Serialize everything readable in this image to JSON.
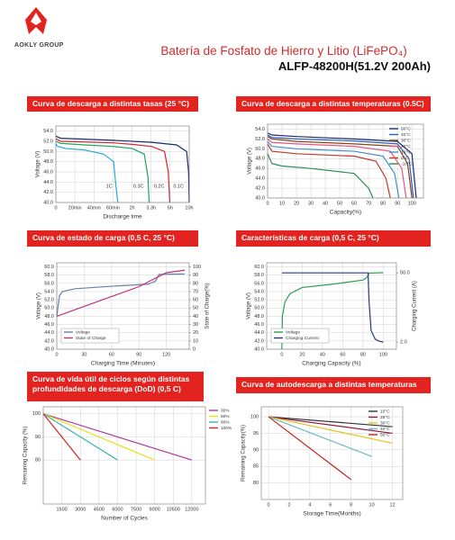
{
  "header": {
    "logo": "AOKLY GROUP",
    "title": "Batería de Fosfato de Hierro y Litio (LiFePO₄)",
    "model": "ALFP-48200H(51.2V 200Ah)"
  },
  "chart_data": [
    {
      "type": "line",
      "title": "Curva de descarga a distintas tasas (25 °C)",
      "y_label": "Voltage (V)",
      "x_label": "Discharge time",
      "xscale": "piecewise",
      "xlim": [
        0,
        600
      ],
      "xticks": [
        0,
        {
          "value": 20,
          "label": "20min"
        },
        {
          "value": 40,
          "label": "40min"
        },
        {
          "value": 60,
          "label": "60min"
        },
        {
          "value": 120,
          "label": "2h"
        },
        {
          "value": 198,
          "label": "3.3h"
        },
        {
          "value": 300,
          "label": "5h"
        },
        {
          "value": 600,
          "label": "10h"
        }
      ],
      "ylim": [
        40,
        55
      ],
      "yticks": [
        {
          "value": 40,
          "label": "40.0"
        },
        {
          "value": 42,
          "label": "42.0"
        },
        {
          "value": 44,
          "label": "44.0"
        },
        {
          "value": 46,
          "label": "46.0"
        },
        {
          "value": 48,
          "label": "48.0"
        },
        {
          "value": 50,
          "label": "50.0"
        },
        {
          "value": 52,
          "label": "52.0"
        },
        {
          "value": 54,
          "label": "54.0"
        }
      ],
      "grid": true,
      "series": [
        {
          "name": "1C",
          "color": "#29a8e0",
          "x": [
            0,
            2,
            10,
            30,
            50,
            62,
            68,
            75
          ],
          "values": [
            51.5,
            51,
            50.6,
            50.3,
            49.5,
            48,
            44,
            40
          ]
        },
        {
          "name": "0.3C",
          "color": "#1aa65a",
          "x": [
            0,
            5,
            30,
            60,
            120,
            170,
            185,
            190
          ],
          "values": [
            52,
            51.6,
            51.3,
            51,
            50.6,
            49.5,
            45,
            40
          ]
        },
        {
          "name": "0.2C",
          "color": "#d9232f",
          "x": [
            0,
            5,
            60,
            120,
            200,
            270,
            290,
            298
          ],
          "values": [
            52.5,
            52,
            51.7,
            51.4,
            51,
            50,
            46,
            40
          ]
        },
        {
          "name": "0.1C",
          "color": "#1d2a6b",
          "x": [
            0,
            5,
            60,
            200,
            400,
            560,
            590,
            600
          ],
          "values": [
            53,
            52.6,
            52.2,
            51.8,
            51.3,
            50,
            46,
            40
          ]
        }
      ]
    },
    {
      "type": "line",
      "title": "Curva de descarga a distintas temperaturas (0.5C)",
      "y_label": "Voltage (V)",
      "x_label": "Capacity(%)",
      "xlim": [
        0,
        108
      ],
      "xticks": [
        0,
        10,
        20,
        30,
        40,
        50,
        60,
        70,
        80,
        90,
        100
      ],
      "ylim": [
        40,
        55
      ],
      "yticks": [
        {
          "value": 40,
          "label": "40.0"
        },
        {
          "value": 42,
          "label": "42.0"
        },
        {
          "value": 44,
          "label": "44.0"
        },
        {
          "value": 46,
          "label": "46.0"
        },
        {
          "value": 48,
          "label": "48.0"
        },
        {
          "value": 50,
          "label": "50.0"
        },
        {
          "value": 52,
          "label": "52.0"
        },
        {
          "value": 54,
          "label": "54.0"
        }
      ],
      "grid": true,
      "legend": "top-right",
      "series": [
        {
          "name": "50°C",
          "color": "#1d2a6b",
          "x": [
            0,
            3,
            20,
            60,
            90,
            100,
            103
          ],
          "values": [
            53.2,
            52.8,
            52.5,
            52,
            51.5,
            49,
            40
          ]
        },
        {
          "name": "40°C",
          "color": "#2e5fbf",
          "x": [
            0,
            3,
            20,
            60,
            90,
            98,
            101
          ],
          "values": [
            52.8,
            52.3,
            52,
            51.6,
            51,
            48,
            40
          ]
        },
        {
          "name": "30°C",
          "color": "#8b4513",
          "x": [
            0,
            3,
            20,
            60,
            90,
            97,
            100
          ],
          "values": [
            52.5,
            52,
            51.5,
            51,
            50.5,
            47,
            40
          ]
        },
        {
          "name": "20°C",
          "color": "#e75480",
          "x": [
            0,
            3,
            20,
            60,
            85,
            93,
            96
          ],
          "values": [
            52,
            51.3,
            51,
            50.5,
            49.5,
            46,
            40
          ]
        },
        {
          "name": "10°C",
          "color": "#3f8fd2",
          "x": [
            0,
            3,
            20,
            60,
            80,
            88,
            91
          ],
          "values": [
            51.5,
            50.5,
            50,
            49.5,
            48.5,
            45,
            40
          ]
        },
        {
          "name": "0°C",
          "color": "#c0392b",
          "x": [
            0,
            3,
            20,
            60,
            75,
            82,
            85
          ],
          "values": [
            51,
            49.5,
            49,
            48.5,
            47.5,
            44,
            40
          ]
        },
        {
          "name": "-10°C",
          "color": "#2e8b57",
          "x": [
            0,
            3,
            10,
            30,
            60,
            70,
            73
          ],
          "values": [
            49,
            47,
            46.5,
            46,
            45,
            42,
            40
          ]
        }
      ]
    },
    {
      "type": "line",
      "title": "Curva de estado de carga (0,5 C, 25 °C)",
      "y_label": "Voltage (V)",
      "y2_label": "State of Charge(%)",
      "x_label": "Charging Time (Minutes)",
      "xlim": [
        0,
        145
      ],
      "xticks": [
        0,
        30,
        60,
        90,
        120
      ],
      "ylim": [
        40,
        61
      ],
      "yticks": [
        {
          "value": 40,
          "label": "40.0"
        },
        {
          "value": 42,
          "label": "42.0"
        },
        {
          "value": 44,
          "label": "44.0"
        },
        {
          "value": 46,
          "label": "46.0"
        },
        {
          "value": 48,
          "label": "48.0"
        },
        {
          "value": 50,
          "label": "50.0"
        },
        {
          "value": 52,
          "label": "52.0"
        },
        {
          "value": 54,
          "label": "54.0"
        },
        {
          "value": 56,
          "label": "56.0"
        },
        {
          "value": 58,
          "label": "58.0"
        },
        {
          "value": 60,
          "label": "60.0"
        }
      ],
      "y2lim": [
        0,
        105
      ],
      "y2ticks": [
        0,
        10,
        20,
        30,
        40,
        50,
        60,
        70,
        80,
        90,
        100
      ],
      "grid": true,
      "legend": "bottom-left",
      "series": [
        {
          "name": "Voltage",
          "color": "#6c7fa8",
          "x": [
            0,
            3,
            6,
            20,
            60,
            100,
            108,
            112,
            140
          ],
          "values": [
            48,
            53,
            54,
            54.7,
            55.3,
            55.8,
            56.5,
            58.2,
            58.3
          ]
        },
        {
          "name": "State of Charge",
          "color": "#c0307a",
          "axis": "y2",
          "x": [
            0,
            30,
            60,
            90,
            120,
            140
          ],
          "values": [
            40,
            52,
            64,
            76,
            93,
            96
          ]
        }
      ]
    },
    {
      "type": "line",
      "title": "Características de carga (0,5 C, 25 °C)",
      "y_label": "Voltage (V)",
      "y2_label": "Charging Current (A)",
      "x_label": "Charging Capacity (%)",
      "xlim": [
        -15,
        113
      ],
      "xticks": [
        0,
        20,
        40,
        60,
        80,
        100
      ],
      "ylim": [
        40,
        61
      ],
      "yticks": [
        {
          "value": 40,
          "label": "40.0"
        },
        {
          "value": 42,
          "label": "42.0"
        },
        {
          "value": 44,
          "label": "44.0"
        },
        {
          "value": 46,
          "label": "46.0"
        },
        {
          "value": 48,
          "label": "48.0"
        },
        {
          "value": 50,
          "label": "50.0"
        },
        {
          "value": 52,
          "label": "52.0"
        },
        {
          "value": 54,
          "label": "54.0"
        },
        {
          "value": 56,
          "label": "56.0"
        },
        {
          "value": 58,
          "label": "58.0"
        },
        {
          "value": 60,
          "label": "60.0"
        }
      ],
      "y2lim": [
        -3,
        57
      ],
      "y2ticks": [
        {
          "value": 2,
          "label": "2.0"
        },
        {
          "value": 50,
          "label": "50.0"
        }
      ],
      "grid": true,
      "legend": "bottom-left",
      "series": [
        {
          "name": "Voltage",
          "color": "#2e9e4f",
          "x": [
            0,
            0.5,
            3,
            8,
            20,
            50,
            80,
            84,
            86,
            100
          ],
          "values": [
            40,
            48,
            51.5,
            53.5,
            55,
            55.8,
            56.8,
            57.5,
            58.5,
            58.6
          ]
        },
        {
          "name": "Charging Current",
          "color": "#2b3a7a",
          "axis": "y2",
          "x": [
            0,
            85,
            86,
            88,
            92,
            96,
            100
          ],
          "values": [
            50,
            50,
            30,
            10,
            4,
            2.5,
            2
          ]
        }
      ]
    },
    {
      "type": "line",
      "title": "Curva de vida útil de ciclos según distintas profundidades de descarga (DoD) (0,5 C)",
      "y_label": "Remaining Capacity (%)",
      "x_label": "Number of Cycles",
      "xlim": [
        0,
        13100
      ],
      "xticks": [
        1500,
        3000,
        4500,
        6000,
        7500,
        9000,
        10500,
        12000
      ],
      "ylim": [
        61,
        103
      ],
      "yticks": [
        80,
        90,
        100
      ],
      "grid": true,
      "legend": "right",
      "series": [
        {
          "name": "30%",
          "color": "#b03a9e",
          "x": [
            0,
            12000
          ],
          "values": [
            100,
            80
          ]
        },
        {
          "name": "50%",
          "color": "#e8e01a",
          "x": [
            0,
            9000
          ],
          "values": [
            100,
            80
          ]
        },
        {
          "name": "80%",
          "color": "#3fb0b0",
          "x": [
            0,
            6000
          ],
          "values": [
            100,
            80
          ]
        },
        {
          "name": "100%",
          "color": "#d42020",
          "x": [
            0,
            3000
          ],
          "values": [
            100,
            80
          ]
        }
      ]
    },
    {
      "type": "line",
      "title": "Curva de autodescarga a distintas temperaturas",
      "y_label": "Remaining Capacity(%)",
      "x_label": "Storage Time(Months)",
      "xlim": [
        -0.7,
        13
      ],
      "xticks": [
        0,
        2,
        4,
        6,
        8,
        10,
        12
      ],
      "ylim": [
        75,
        103
      ],
      "yticks": [
        80,
        85,
        90,
        95,
        100
      ],
      "grid": true,
      "legend": "top-right",
      "series": [
        {
          "name": "10°C",
          "color": "#333333",
          "x": [
            0,
            12
          ],
          "values": [
            100,
            97
          ]
        },
        {
          "name": "25°C",
          "color": "#8b1a3a",
          "x": [
            0,
            12
          ],
          "values": [
            100,
            95
          ]
        },
        {
          "name": "30°C",
          "color": "#e3c21a",
          "x": [
            0,
            12
          ],
          "values": [
            100,
            92
          ]
        },
        {
          "name": "40°C",
          "color": "#6ab8c8",
          "x": [
            0,
            10
          ],
          "values": [
            100,
            88
          ]
        },
        {
          "name": "50°C",
          "color": "#c8201e",
          "x": [
            0,
            8
          ],
          "values": [
            100,
            81
          ]
        }
      ]
    }
  ]
}
